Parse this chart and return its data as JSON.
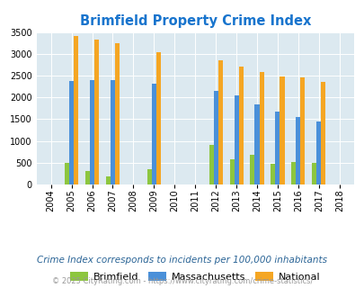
{
  "title": "Brimfield Property Crime Index",
  "title_color": "#1874cd",
  "years": [
    2004,
    2005,
    2006,
    2007,
    2008,
    2009,
    2010,
    2011,
    2012,
    2013,
    2014,
    2015,
    2016,
    2017,
    2018
  ],
  "brimfield": [
    null,
    500,
    310,
    170,
    null,
    340,
    null,
    null,
    900,
    570,
    680,
    480,
    510,
    500,
    null
  ],
  "massachusetts": [
    null,
    2380,
    2410,
    2410,
    null,
    2330,
    null,
    null,
    2160,
    2060,
    1850,
    1680,
    1560,
    1450,
    null
  ],
  "national": [
    null,
    3430,
    3330,
    3260,
    null,
    3040,
    null,
    null,
    2870,
    2720,
    2590,
    2490,
    2470,
    2370,
    null
  ],
  "brimfield_color": "#8dc63f",
  "massachusetts_color": "#4a90d9",
  "national_color": "#f5a623",
  "ylim": [
    0,
    3500
  ],
  "yticks": [
    0,
    500,
    1000,
    1500,
    2000,
    2500,
    3000,
    3500
  ],
  "legend_labels": [
    "Brimfield",
    "Massachusetts",
    "National"
  ],
  "footnote1": "Crime Index corresponds to incidents per 100,000 inhabitants",
  "footnote2": "© 2025 CityRating.com - https://www.cityrating.com/crime-statistics/",
  "bg_color": "#dce9f0",
  "bar_width": 0.22,
  "footnote1_color": "#2a6496",
  "footnote2_color": "#999999"
}
